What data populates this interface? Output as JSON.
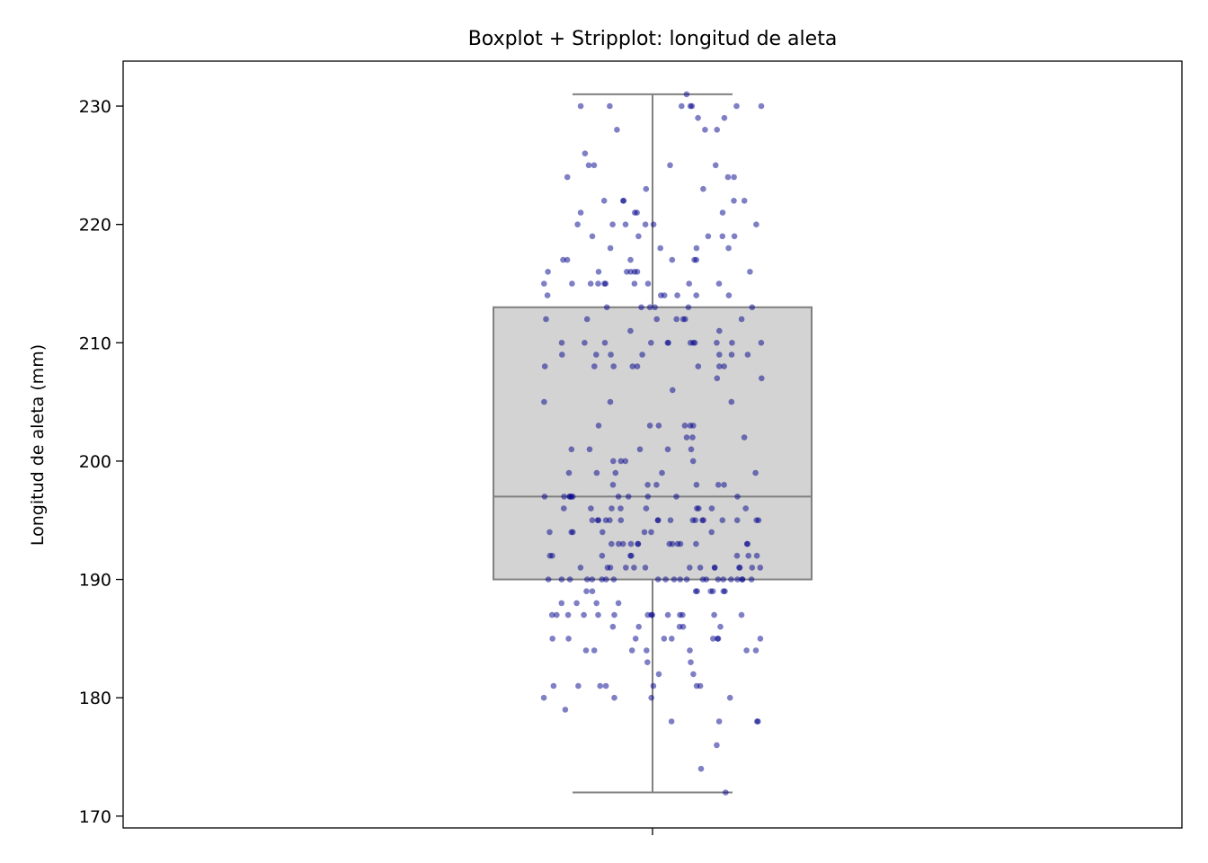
{
  "chart_data": {
    "type": "boxplot+stripplot",
    "title": "Boxplot + Stripplot: longitud de aleta",
    "xlabel": "",
    "ylabel": "Longitud de aleta (mm)",
    "ylim": [
      169,
      233.8
    ],
    "yticks": [
      170,
      180,
      190,
      200,
      210,
      220,
      230
    ],
    "grid": false,
    "legend": "none",
    "box": {
      "min": 172,
      "q1": 190,
      "median": 197,
      "q3": 213,
      "max": 231,
      "fill": "#d3d3d3",
      "edge": "#808080"
    },
    "points": {
      "color": "#00008b",
      "alpha": 0.5,
      "values": [
        231,
        230,
        230,
        230,
        230,
        230,
        230,
        230,
        229,
        229,
        228,
        228,
        228,
        226,
        225,
        225,
        225,
        225,
        224,
        224,
        224,
        223,
        223,
        222,
        222,
        222,
        222,
        222,
        221,
        221,
        221,
        221,
        220,
        220,
        220,
        220,
        220,
        220,
        219,
        219,
        219,
        219,
        219,
        218,
        218,
        218,
        218,
        217,
        217,
        217,
        217,
        217,
        217,
        216,
        216,
        216,
        216,
        216,
        216,
        216,
        215,
        215,
        215,
        215,
        215,
        215,
        215,
        215,
        215,
        215,
        214,
        214,
        214,
        214,
        214,
        214,
        213,
        213,
        213,
        213,
        213,
        213,
        212,
        212,
        212,
        212,
        212,
        212,
        212,
        211,
        211,
        210,
        210,
        210,
        210,
        210,
        210,
        210,
        210,
        210,
        210,
        210,
        210,
        209,
        209,
        209,
        209,
        209,
        209,
        209,
        208,
        208,
        208,
        208,
        208,
        208,
        208,
        208,
        207,
        207,
        206,
        205,
        205,
        205,
        203,
        203,
        203,
        203,
        203,
        203,
        202,
        202,
        202,
        201,
        201,
        201,
        201,
        201,
        200,
        200,
        200,
        200,
        199,
        199,
        199,
        199,
        199,
        198,
        198,
        198,
        198,
        198,
        198,
        197,
        197,
        197,
        197,
        197,
        197,
        197,
        197,
        197,
        197,
        197,
        196,
        196,
        196,
        196,
        196,
        196,
        196,
        196,
        196,
        195,
        195,
        195,
        195,
        195,
        195,
        195,
        195,
        195,
        195,
        195,
        195,
        195,
        195,
        195,
        195,
        195,
        194,
        194,
        194,
        194,
        194,
        194,
        194,
        193,
        193,
        193,
        193,
        193,
        193,
        193,
        193,
        193,
        193,
        193,
        193,
        193,
        192,
        192,
        192,
        192,
        192,
        192,
        192,
        192,
        191,
        191,
        191,
        191,
        191,
        191,
        191,
        191,
        191,
        191,
        191,
        191,
        191,
        191,
        190,
        190,
        190,
        190,
        190,
        190,
        190,
        190,
        190,
        190,
        190,
        190,
        190,
        190,
        190,
        190,
        190,
        190,
        190,
        190,
        190,
        190,
        189,
        189,
        189,
        189,
        189,
        189,
        189,
        189,
        188,
        188,
        188,
        188,
        187,
        187,
        187,
        187,
        187,
        187,
        187,
        187,
        187,
        187,
        187,
        187,
        187,
        187,
        186,
        186,
        186,
        186,
        186,
        185,
        185,
        185,
        185,
        185,
        185,
        185,
        185,
        185,
        184,
        184,
        184,
        184,
        184,
        184,
        184,
        183,
        183,
        182,
        182,
        181,
        181,
        181,
        181,
        181,
        181,
        181,
        180,
        180,
        180,
        180,
        179,
        178,
        178,
        178,
        178,
        176,
        174,
        172
      ]
    }
  }
}
